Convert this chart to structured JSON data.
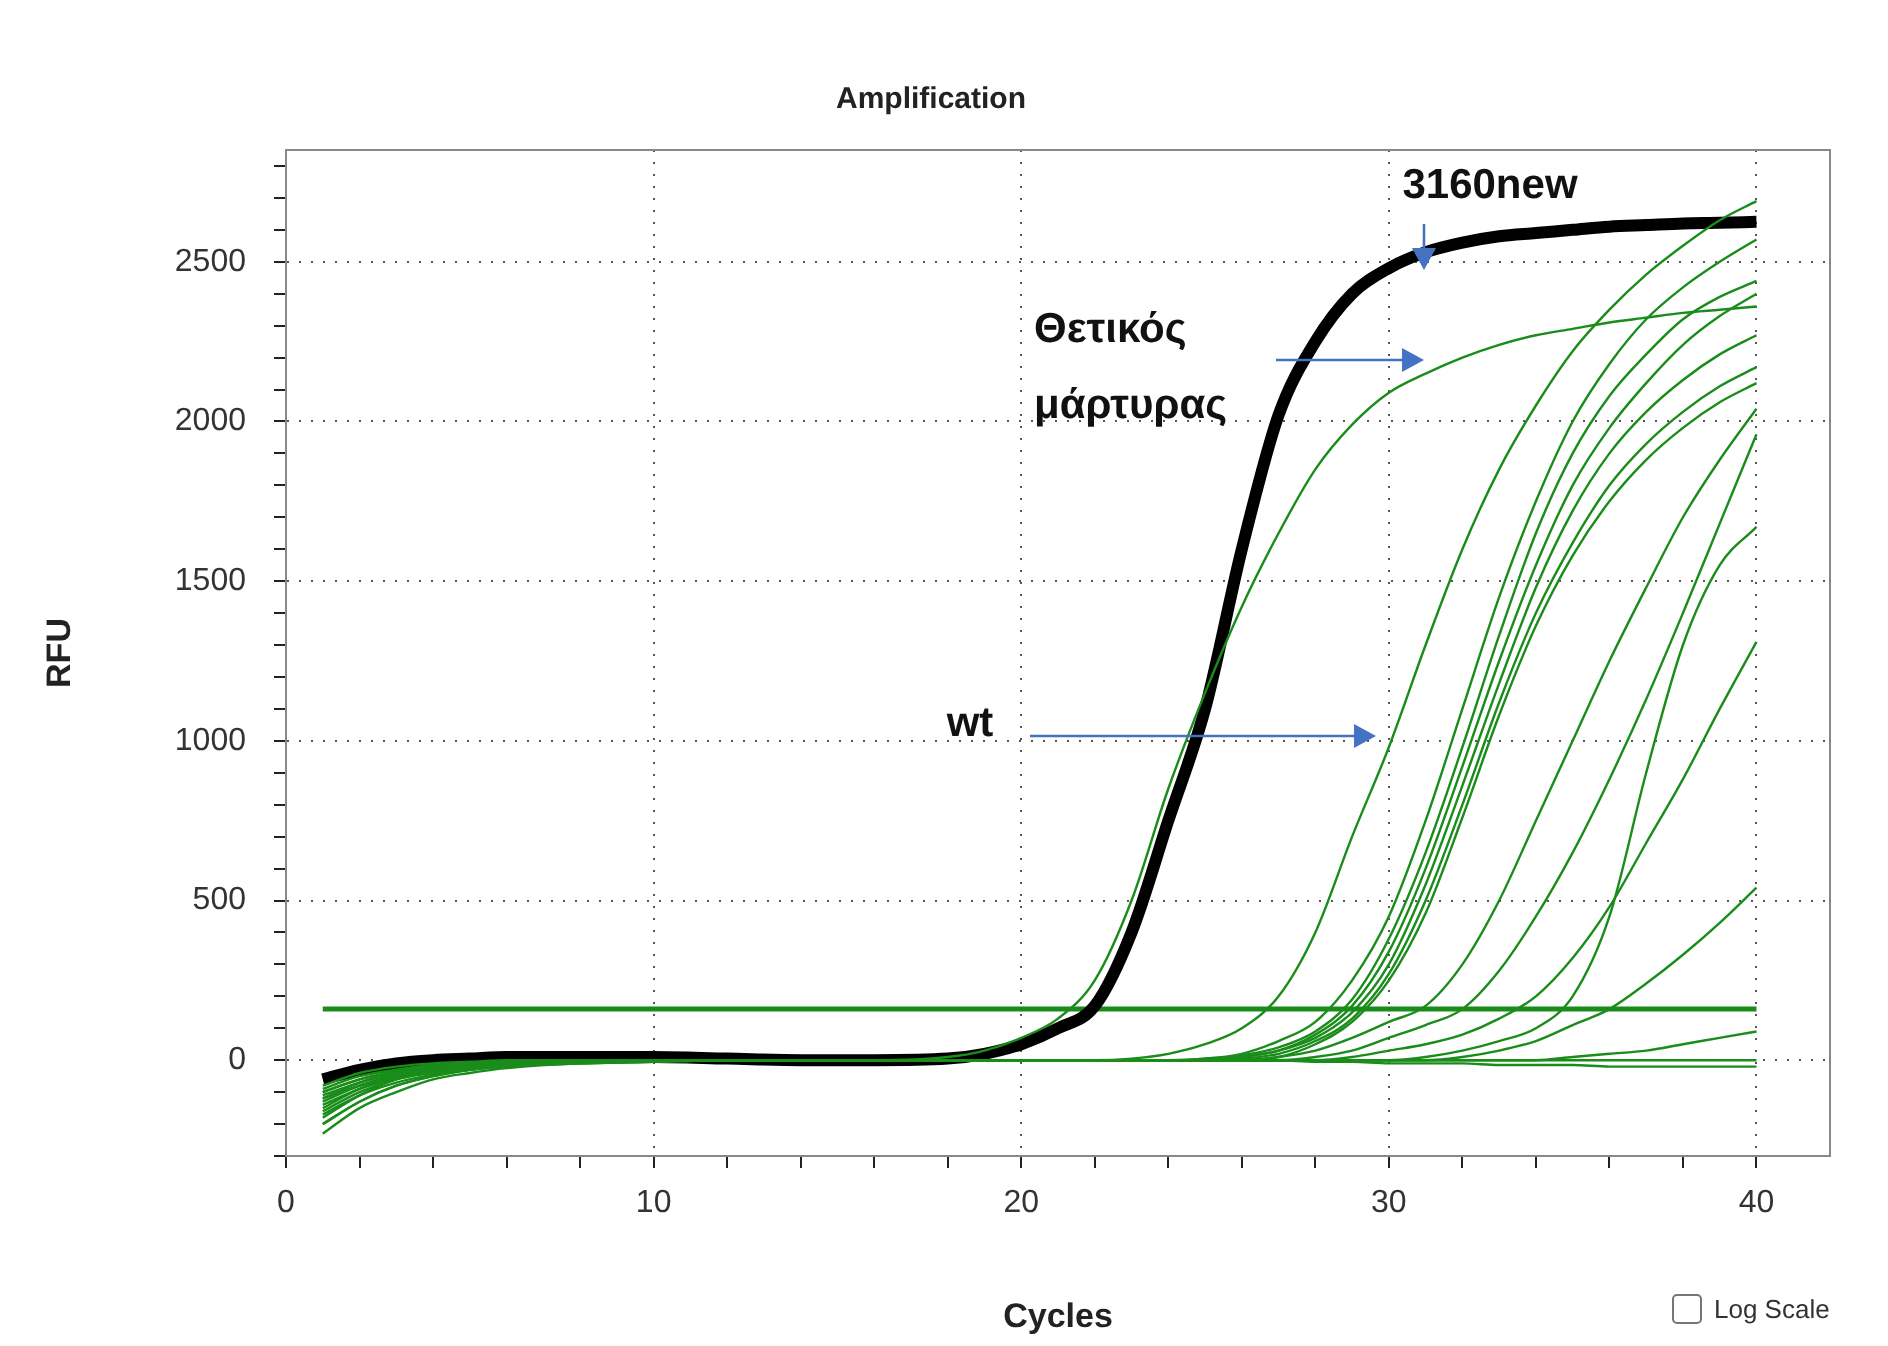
{
  "chart_data": {
    "type": "line",
    "title": "Amplification",
    "xlabel": "Cycles",
    "ylabel": "RFU",
    "x": [
      1,
      2,
      3,
      4,
      5,
      6,
      8,
      10,
      12,
      14,
      16,
      18,
      19,
      20,
      21,
      22,
      23,
      24,
      25,
      26,
      27,
      28,
      29,
      30,
      31,
      32,
      33,
      34,
      35,
      36,
      37,
      38,
      39,
      40
    ],
    "xlim": [
      0,
      42
    ],
    "xticks": [
      0,
      {
        "value": 2,
        "label": null
      },
      {
        "value": 4,
        "label": null
      },
      {
        "value": 6,
        "label": null
      },
      {
        "value": 8,
        "label": null
      },
      10,
      {
        "value": 12,
        "label": null
      },
      {
        "value": 14,
        "label": null
      },
      {
        "value": 16,
        "label": null
      },
      {
        "value": 18,
        "label": null
      },
      20,
      {
        "value": 22,
        "label": null
      },
      {
        "value": 24,
        "label": null
      },
      {
        "value": 26,
        "label": null
      },
      {
        "value": 28,
        "label": null
      },
      30,
      {
        "value": 32,
        "label": null
      },
      {
        "value": 34,
        "label": null
      },
      {
        "value": 36,
        "label": null
      },
      {
        "value": 38,
        "label": null
      },
      40
    ],
    "ylim": [
      -300,
      2850
    ],
    "yticks": [
      {
        "value": -300,
        "label": null
      },
      {
        "value": -200,
        "label": null
      },
      {
        "value": -100,
        "label": null
      },
      0,
      {
        "value": 100,
        "label": null
      },
      {
        "value": 200,
        "label": null
      },
      {
        "value": 300,
        "label": null
      },
      {
        "value": 400,
        "label": null
      },
      500,
      {
        "value": 600,
        "label": null
      },
      {
        "value": 700,
        "label": null
      },
      {
        "value": 800,
        "label": null
      },
      {
        "value": 900,
        "label": null
      },
      1000,
      {
        "value": 1100,
        "label": null
      },
      {
        "value": 1200,
        "label": null
      },
      {
        "value": 1300,
        "label": null
      },
      {
        "value": 1400,
        "label": null
      },
      1500,
      {
        "value": 1600,
        "label": null
      },
      {
        "value": 1700,
        "label": null
      },
      {
        "value": 1800,
        "label": null
      },
      {
        "value": 1900,
        "label": null
      },
      2000,
      {
        "value": 2100,
        "label": null
      },
      {
        "value": 2200,
        "label": null
      },
      {
        "value": 2300,
        "label": null
      },
      {
        "value": 2400,
        "label": null
      },
      2500,
      {
        "value": 2600,
        "label": null
      },
      {
        "value": 2700,
        "label": null
      },
      {
        "value": 2800,
        "label": null
      }
    ],
    "grid": true,
    "legend": false,
    "line_style": "solid",
    "ref_lines": [
      {
        "axis": "y",
        "value": 160,
        "color": "#1a8c1a"
      }
    ],
    "series": [
      {
        "color": "#1a8c1a",
        "values": [
          -100,
          -60,
          -35,
          -20,
          -10,
          -5,
          0,
          0,
          0,
          0,
          0,
          0,
          0,
          0,
          0,
          0,
          0,
          0,
          0,
          0,
          0,
          0,
          0,
          0,
          0,
          0,
          0,
          0,
          0,
          0,
          0,
          0,
          0,
          0
        ]
      },
      {
        "color": "#1a8c1a",
        "values": [
          -200,
          -130,
          -80,
          -50,
          -30,
          -20,
          -10,
          -5,
          0,
          0,
          0,
          0,
          0,
          0,
          0,
          0,
          0,
          0,
          0,
          0,
          0,
          -5,
          -5,
          -10,
          -10,
          -10,
          -15,
          -15,
          -15,
          -20,
          -20,
          -20,
          -20,
          -20
        ]
      },
      {
        "color": "#1a8c1a",
        "values": [
          -120,
          -80,
          -50,
          -30,
          -20,
          -10,
          -5,
          0,
          0,
          0,
          0,
          0,
          0,
          0,
          0,
          0,
          0,
          0,
          0,
          0,
          0,
          0,
          0,
          0,
          0,
          0,
          0,
          0,
          10,
          20,
          30,
          50,
          70,
          90
        ]
      },
      {
        "color": "#1a8c1a",
        "values": [
          -170,
          -110,
          -70,
          -45,
          -30,
          -20,
          -10,
          -5,
          0,
          0,
          0,
          0,
          0,
          0,
          0,
          0,
          0,
          0,
          0,
          0,
          0,
          0,
          0,
          0,
          0,
          10,
          30,
          60,
          110,
          160,
          240,
          330,
          430,
          540
        ]
      },
      {
        "color": "#1a8c1a",
        "values": [
          -160,
          -100,
          -60,
          -40,
          -25,
          -15,
          -5,
          0,
          0,
          0,
          0,
          0,
          0,
          0,
          0,
          0,
          0,
          0,
          0,
          0,
          0,
          0,
          0,
          0,
          10,
          30,
          60,
          100,
          200,
          450,
          900,
          1300,
          1550,
          1670
        ]
      },
      {
        "color": "#1a8c1a",
        "values": [
          -140,
          -90,
          -55,
          -30,
          -20,
          -10,
          -5,
          0,
          0,
          0,
          0,
          0,
          0,
          0,
          0,
          0,
          0,
          0,
          0,
          0,
          0,
          0,
          10,
          30,
          50,
          80,
          130,
          200,
          320,
          480,
          680,
          880,
          1100,
          1310
        ]
      },
      {
        "color": "#1a8c1a",
        "values": [
          -110,
          -70,
          -40,
          -25,
          -15,
          -10,
          -5,
          0,
          0,
          0,
          0,
          0,
          0,
          0,
          0,
          0,
          0,
          0,
          0,
          0,
          0,
          10,
          30,
          70,
          110,
          160,
          280,
          450,
          650,
          880,
          1130,
          1400,
          1680,
          1960
        ]
      },
      {
        "color": "#1a8c1a",
        "values": [
          -90,
          -50,
          -30,
          -15,
          -10,
          -5,
          0,
          0,
          0,
          0,
          0,
          0,
          0,
          0,
          0,
          0,
          0,
          0,
          0,
          0,
          10,
          30,
          70,
          120,
          170,
          300,
          500,
          750,
          1000,
          1250,
          1480,
          1700,
          1880,
          2040
        ]
      },
      {
        "color": "#1a8c1a",
        "values": [
          -230,
          -150,
          -100,
          -60,
          -40,
          -25,
          -10,
          -5,
          0,
          0,
          0,
          0,
          0,
          0,
          0,
          0,
          0,
          0,
          0,
          0,
          10,
          50,
          120,
          250,
          460,
          760,
          1080,
          1360,
          1580,
          1750,
          1880,
          1980,
          2060,
          2120
        ]
      },
      {
        "color": "#1a8c1a",
        "values": [
          -130,
          -80,
          -45,
          -25,
          -15,
          -5,
          0,
          0,
          0,
          0,
          0,
          0,
          0,
          0,
          0,
          0,
          0,
          0,
          0,
          5,
          20,
          60,
          130,
          270,
          500,
          800,
          1120,
          1400,
          1620,
          1800,
          1930,
          2030,
          2110,
          2170
        ]
      },
      {
        "color": "#1a8c1a",
        "values": [
          -200,
          -130,
          -80,
          -50,
          -30,
          -15,
          -5,
          0,
          0,
          0,
          0,
          0,
          0,
          0,
          0,
          0,
          0,
          0,
          0,
          10,
          30,
          70,
          150,
          300,
          550,
          860,
          1180,
          1480,
          1720,
          1900,
          2030,
          2130,
          2210,
          2270
        ]
      },
      {
        "color": "#1a8c1a",
        "values": [
          -100,
          -60,
          -35,
          -20,
          -10,
          -5,
          0,
          0,
          0,
          0,
          0,
          0,
          0,
          0,
          0,
          0,
          0,
          0,
          0,
          10,
          30,
          80,
          170,
          340,
          600,
          920,
          1250,
          1550,
          1800,
          1980,
          2120,
          2240,
          2330,
          2400
        ]
      },
      {
        "color": "#1a8c1a",
        "values": [
          -180,
          -110,
          -60,
          -35,
          -20,
          -10,
          -5,
          0,
          0,
          0,
          0,
          0,
          0,
          0,
          0,
          0,
          0,
          0,
          5,
          15,
          40,
          90,
          190,
          380,
          650,
          980,
          1330,
          1650,
          1900,
          2080,
          2210,
          2320,
          2390,
          2440
        ]
      },
      {
        "color": "#1a8c1a",
        "values": [
          -150,
          -90,
          -50,
          -30,
          -15,
          -10,
          -5,
          0,
          0,
          0,
          0,
          0,
          0,
          0,
          0,
          0,
          0,
          0,
          5,
          20,
          60,
          120,
          250,
          450,
          750,
          1100,
          1450,
          1750,
          2000,
          2180,
          2320,
          2420,
          2500,
          2570
        ]
      },
      {
        "color": "#1a8c1a",
        "values": [
          -120,
          -70,
          -40,
          -20,
          -10,
          -5,
          0,
          0,
          0,
          0,
          0,
          0,
          0,
          0,
          0,
          0,
          5,
          20,
          50,
          100,
          200,
          400,
          700,
          980,
          1300,
          1600,
          1850,
          2050,
          2220,
          2350,
          2460,
          2550,
          2630,
          2690
        ]
      },
      {
        "color": "#1a8c1a",
        "values": [
          -80,
          -40,
          -20,
          -10,
          -5,
          0,
          0,
          0,
          0,
          0,
          0,
          10,
          30,
          70,
          130,
          250,
          500,
          850,
          1150,
          1420,
          1650,
          1850,
          1990,
          2090,
          2150,
          2200,
          2240,
          2270,
          2290,
          2310,
          2325,
          2340,
          2350,
          2360
        ]
      },
      {
        "color": "#000000",
        "values": [
          -60,
          -30,
          -10,
          0,
          5,
          10,
          10,
          10,
          5,
          0,
          0,
          5,
          20,
          50,
          100,
          170,
          400,
          750,
          1100,
          1600,
          2020,
          2250,
          2400,
          2480,
          2530,
          2560,
          2580,
          2590,
          2600,
          2610,
          2615,
          2620,
          2622,
          2625
        ]
      }
    ],
    "annotations": [
      "3160new",
      "Θετικός μάρτυρας",
      "wt",
      "Log Scale"
    ]
  }
}
